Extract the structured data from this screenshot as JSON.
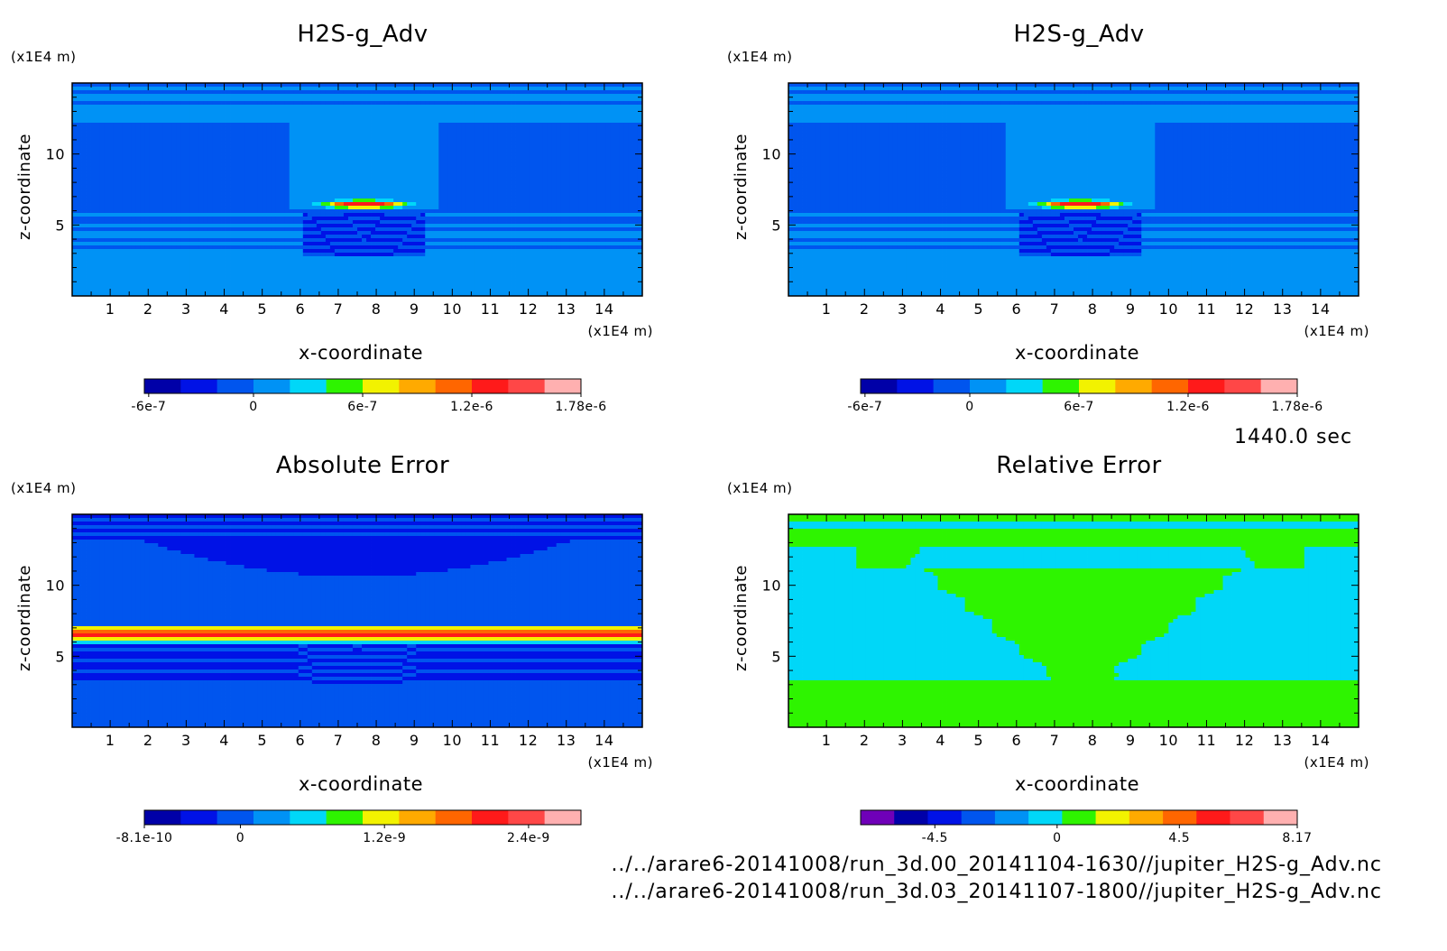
{
  "time_label": "1440.0 sec",
  "footer": {
    "line1": "../../arare6-20141008/run_3d.00_20141104-1630//jupiter_H2S-g_Adv.nc",
    "line2": "../../arare6-20141008/run_3d.03_20141107-1800//jupiter_H2S-g_Adv.nc"
  },
  "palettes": {
    "rainbow11": [
      "#0000a8",
      "#0012e6",
      "#0055ee",
      "#0092f5",
      "#00d7f8",
      "#2ef400",
      "#f2f200",
      "#ffaa00",
      "#ff6600",
      "#ff1a1a",
      "#ff4747",
      "#ffb0b0"
    ],
    "error12": [
      "#6f00b8",
      "#0000a8",
      "#0012e6",
      "#0055ee",
      "#0092f5",
      "#00d7f8",
      "#2ef400",
      "#f2f200",
      "#ffaa00",
      "#ff6600",
      "#ff1a1a",
      "#ff4747",
      "#ffb0b0"
    ]
  },
  "chart_data": [
    {
      "type": "heatmap",
      "title": "H2S-g_Adv",
      "xlabel": "x-coordinate",
      "ylabel": "z-coordinate",
      "x_unit": "(x1E4 m)",
      "z_unit": "(x1E4 m)",
      "xlim": [
        0,
        15
      ],
      "zlim": [
        0,
        15
      ],
      "x_ticks": [
        1,
        2,
        3,
        4,
        5,
        6,
        7,
        8,
        9,
        10,
        11,
        12,
        13,
        14
      ],
      "z_ticks": [
        5,
        10
      ],
      "colorbar": {
        "ticks": [
          "-6e-7",
          "0",
          "6e-7",
          "1.2e-6",
          "1.78e-6"
        ],
        "levels": 12,
        "palette": "rainbow11"
      },
      "field": "concentration"
    },
    {
      "type": "heatmap",
      "title": "H2S-g_Adv",
      "xlabel": "x-coordinate",
      "ylabel": "z-coordinate",
      "x_unit": "(x1E4 m)",
      "z_unit": "(x1E4 m)",
      "xlim": [
        0,
        15
      ],
      "zlim": [
        0,
        15
      ],
      "x_ticks": [
        1,
        2,
        3,
        4,
        5,
        6,
        7,
        8,
        9,
        10,
        11,
        12,
        13,
        14
      ],
      "z_ticks": [
        5,
        10
      ],
      "colorbar": {
        "ticks": [
          "-6e-7",
          "0",
          "6e-7",
          "1.2e-6",
          "1.78e-6"
        ],
        "levels": 12,
        "palette": "rainbow11"
      },
      "field": "concentration"
    },
    {
      "type": "heatmap",
      "title": "Absolute Error",
      "xlabel": "x-coordinate",
      "ylabel": "z-coordinate",
      "x_unit": "(x1E4 m)",
      "z_unit": "(x1E4 m)",
      "xlim": [
        0,
        15
      ],
      "zlim": [
        0,
        15
      ],
      "x_ticks": [
        1,
        2,
        3,
        4,
        5,
        6,
        7,
        8,
        9,
        10,
        11,
        12,
        13,
        14
      ],
      "z_ticks": [
        5,
        10
      ],
      "colorbar": {
        "ticks": [
          "-8.1e-10",
          "0",
          "1.2e-9",
          "2.4e-9"
        ],
        "levels": 12,
        "palette": "rainbow11"
      },
      "field": "abs_error"
    },
    {
      "type": "heatmap",
      "title": "Relative Error",
      "xlabel": "x-coordinate",
      "ylabel": "z-coordinate",
      "x_unit": "(x1E4 m)",
      "z_unit": "(x1E4 m)",
      "xlim": [
        0,
        15
      ],
      "zlim": [
        0,
        15
      ],
      "x_ticks": [
        1,
        2,
        3,
        4,
        5,
        6,
        7,
        8,
        9,
        10,
        11,
        12,
        13,
        14
      ],
      "z_ticks": [
        5,
        10
      ],
      "colorbar": {
        "ticks": [
          "-4.5",
          "0",
          "4.5",
          "8.17"
        ],
        "levels": 13,
        "palette": "error12"
      },
      "field": "rel_error"
    }
  ]
}
